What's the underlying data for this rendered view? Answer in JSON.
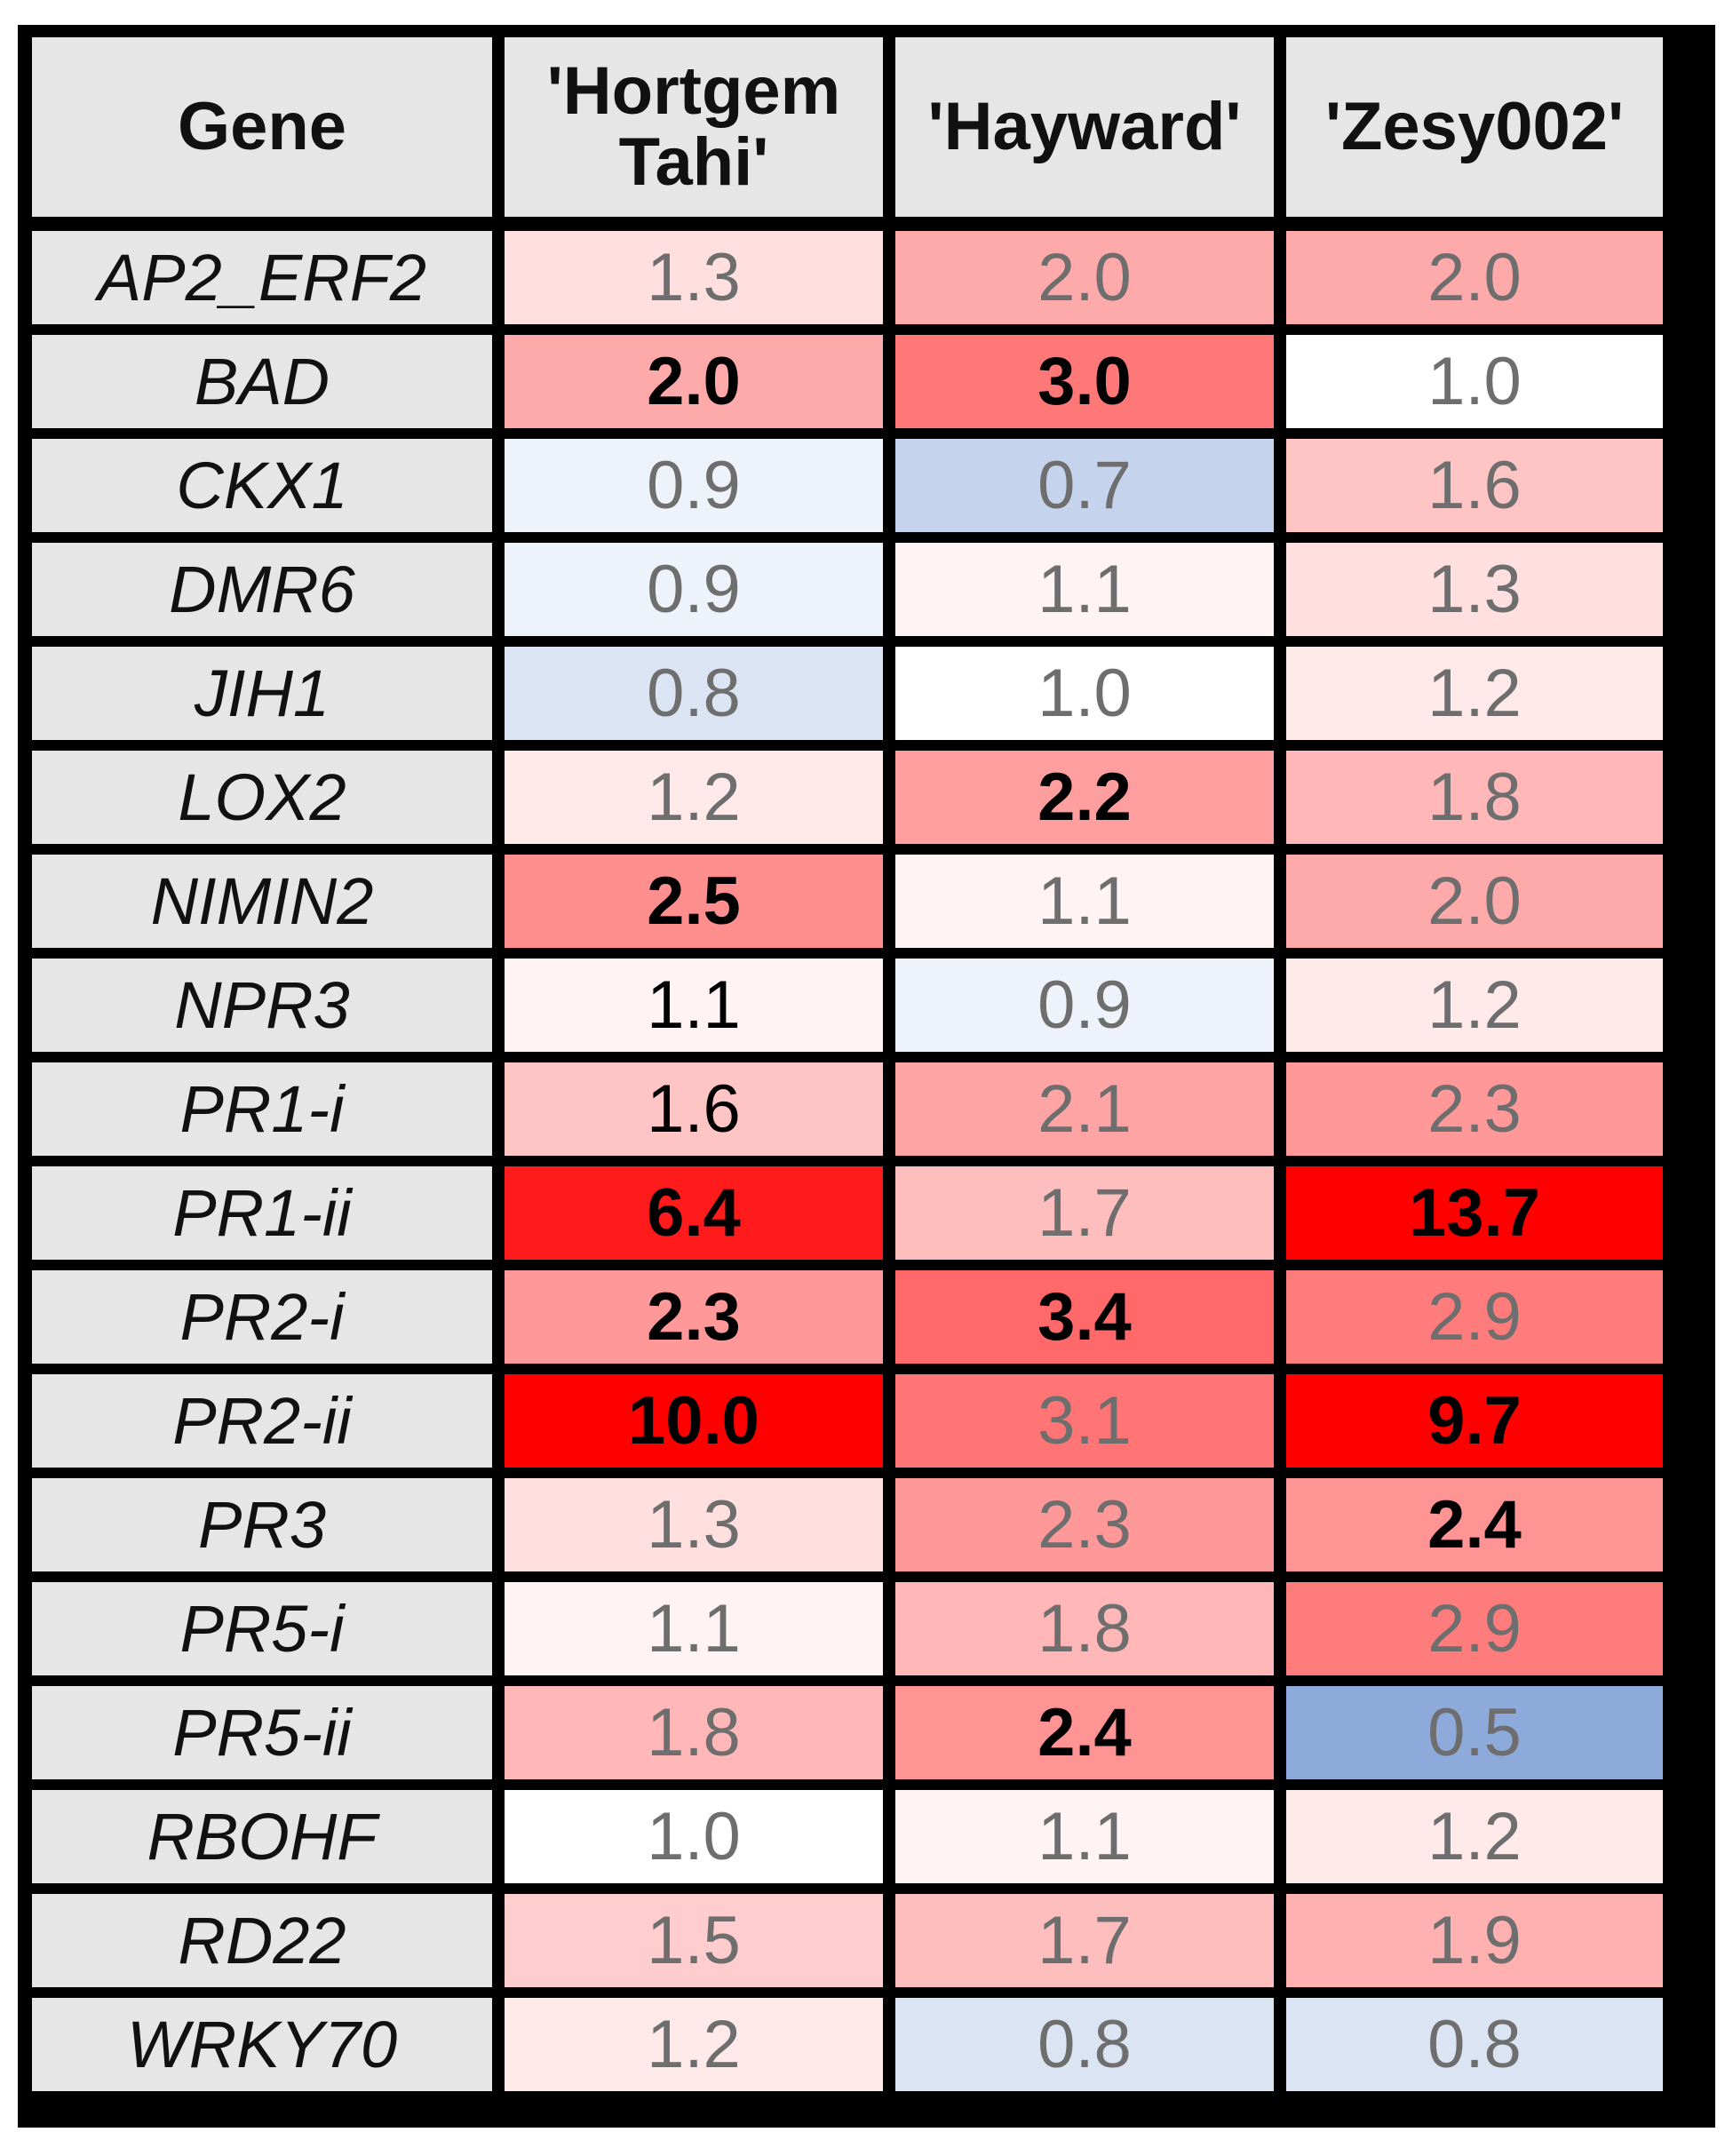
{
  "chart_data": {
    "type": "heatmap",
    "column_header": "Gene",
    "columns": [
      "'Hortgem Tahi'",
      "'Hayward'",
      "'Zesy002'"
    ],
    "rows": [
      {
        "gene": "AP2_ERF2",
        "values": [
          "1.3",
          "2.0",
          "2.0"
        ],
        "bold": [
          false,
          false,
          false
        ]
      },
      {
        "gene": "BAD",
        "values": [
          "2.0",
          "3.0",
          "1.0"
        ],
        "bold": [
          true,
          true,
          false
        ]
      },
      {
        "gene": "CKX1",
        "values": [
          "0.9",
          "0.7",
          "1.6"
        ],
        "bold": [
          false,
          false,
          false
        ]
      },
      {
        "gene": "DMR6",
        "values": [
          "0.9",
          "1.1",
          "1.3"
        ],
        "bold": [
          false,
          false,
          false
        ]
      },
      {
        "gene": "JIH1",
        "values": [
          "0.8",
          "1.0",
          "1.2"
        ],
        "bold": [
          false,
          false,
          false
        ]
      },
      {
        "gene": "LOX2",
        "values": [
          "1.2",
          "2.2",
          "1.8"
        ],
        "bold": [
          false,
          true,
          false
        ]
      },
      {
        "gene": "NIMIN2",
        "values": [
          "2.5",
          "1.1",
          "2.0"
        ],
        "bold": [
          true,
          false,
          false
        ]
      },
      {
        "gene": "NPR3",
        "values": [
          "1.1",
          "0.9",
          "1.2"
        ],
        "bold": [
          false,
          false,
          false
        ],
        "dark": [
          true,
          false,
          false
        ]
      },
      {
        "gene": "PR1-i",
        "values": [
          "1.6",
          "2.1",
          "2.3"
        ],
        "bold": [
          false,
          false,
          false
        ],
        "dark": [
          true,
          false,
          false
        ]
      },
      {
        "gene": "PR1-ii",
        "values": [
          "6.4",
          "1.7",
          "13.7"
        ],
        "bold": [
          true,
          false,
          true
        ]
      },
      {
        "gene": "PR2-i",
        "values": [
          "2.3",
          "3.4",
          "2.9"
        ],
        "bold": [
          true,
          true,
          false
        ]
      },
      {
        "gene": "PR2-ii",
        "values": [
          "10.0",
          "3.1",
          "9.7"
        ],
        "bold": [
          true,
          false,
          true
        ]
      },
      {
        "gene": "PR3",
        "values": [
          "1.3",
          "2.3",
          "2.4"
        ],
        "bold": [
          false,
          false,
          true
        ]
      },
      {
        "gene": "PR5-i",
        "values": [
          "1.1",
          "1.8",
          "2.9"
        ],
        "bold": [
          false,
          false,
          false
        ]
      },
      {
        "gene": "PR5-ii",
        "values": [
          "1.8",
          "2.4",
          "0.5"
        ],
        "bold": [
          false,
          true,
          false
        ]
      },
      {
        "gene": "RBOHF",
        "values": [
          "1.0",
          "1.1",
          "1.2"
        ],
        "bold": [
          false,
          false,
          false
        ]
      },
      {
        "gene": "RD22",
        "values": [
          "1.5",
          "1.7",
          "1.9"
        ],
        "bold": [
          false,
          false,
          false
        ]
      },
      {
        "gene": "WRKY70",
        "values": [
          "1.2",
          "0.8",
          "0.8"
        ],
        "bold": [
          false,
          false,
          false
        ]
      }
    ],
    "colors": {
      "low": "#8eaadb",
      "mid": "#ffffff",
      "high": "#ff0000",
      "header_bg": "#e6e6e6",
      "grid": "#000000"
    }
  }
}
